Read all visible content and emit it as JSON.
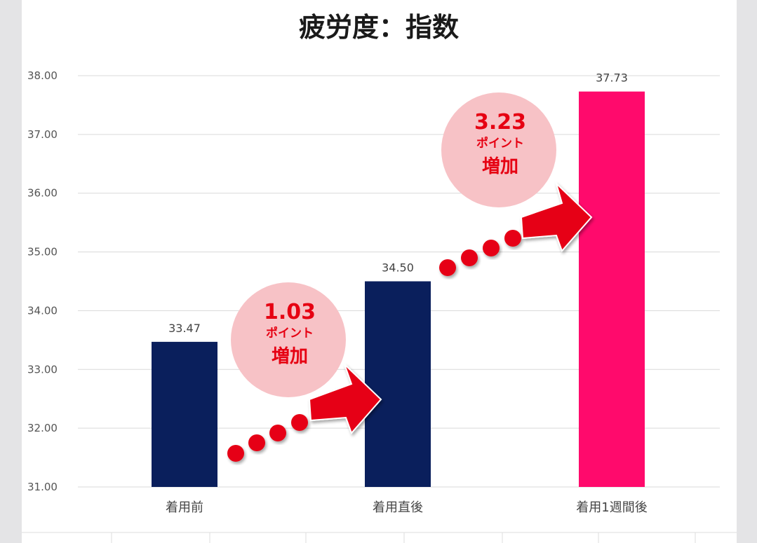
{
  "chart_data": {
    "type": "bar",
    "title": "疲労度：指数",
    "categories": [
      "着用前",
      "着用直後",
      "着用1週間後"
    ],
    "values": [
      33.47,
      34.5,
      37.73
    ],
    "value_labels": [
      "33.47",
      "34.50",
      "37.73"
    ],
    "ylim": [
      31.0,
      38.0
    ],
    "yticks": [
      "31.00",
      "32.00",
      "33.00",
      "34.00",
      "35.00",
      "36.00",
      "37.00",
      "38.00"
    ],
    "grid": true,
    "colors": [
      "#0a1f5c",
      "#0a1f5c",
      "#ff0a6c"
    ],
    "annotations": [
      {
        "value": "1.03",
        "unit": "ポイント",
        "word": "増加"
      },
      {
        "value": "3.23",
        "unit": "ポイント",
        "word": "増加"
      }
    ]
  },
  "colors": {
    "annotation_circle": "#f7c2c6",
    "annotation_text": "#e60012",
    "arrow": "#e60012",
    "grid": "#d9d9d9"
  }
}
